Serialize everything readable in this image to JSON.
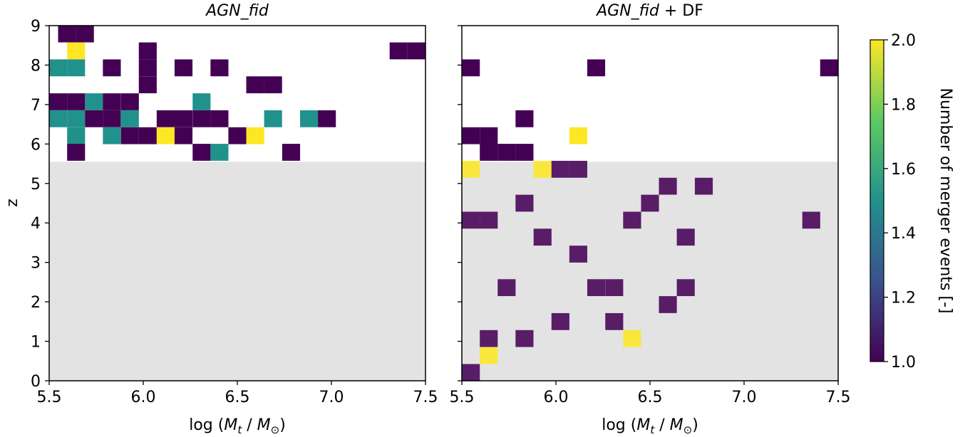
{
  "chart_data": {
    "type": "heatmap",
    "colorbar": {
      "label": "Number of merger events [-]",
      "range": [
        1.0,
        2.0
      ],
      "ticks": [
        "1.0",
        "1.2",
        "1.4",
        "1.6",
        "1.8",
        "2.0"
      ],
      "colormap": "viridis",
      "colors": [
        "#440154",
        "#3b528b",
        "#21918c",
        "#5ec962",
        "#fde725"
      ]
    },
    "shaded_region": {
      "z_range": [
        0,
        5.55
      ],
      "color": "#e3e3e3"
    },
    "cell_size": {
      "dx": 0.0952,
      "dz": 0.4286
    },
    "panels": [
      {
        "title_italic": "AGN_fid",
        "title_rest": "",
        "xlabel_prefix": "log (",
        "xlabel_M": "M",
        "xlabel_t": "t",
        "xlabel_mid": " / ",
        "xlabel_odot": "⊙",
        "xlabel_suffix": ")",
        "ylabel": "z",
        "xlim": [
          5.5,
          7.5
        ],
        "ylim": [
          0,
          9
        ],
        "xticks": [
          "5.5",
          "6.0",
          "6.5",
          "7.0",
          "7.5"
        ],
        "yticks": [
          "0",
          "1",
          "2",
          "3",
          "4",
          "5",
          "6",
          "7",
          "8",
          "9"
        ],
        "cells": [
          {
            "x": 5.595,
            "z": 8.79,
            "v": 1
          },
          {
            "x": 5.69,
            "z": 8.79,
            "v": 1
          },
          {
            "x": 5.643,
            "z": 8.36,
            "v": 2
          },
          {
            "x": 6.024,
            "z": 8.36,
            "v": 1
          },
          {
            "x": 7.357,
            "z": 8.36,
            "v": 1
          },
          {
            "x": 7.452,
            "z": 8.36,
            "v": 1
          },
          {
            "x": 5.548,
            "z": 7.93,
            "v": 1.5
          },
          {
            "x": 5.643,
            "z": 7.93,
            "v": 1.5
          },
          {
            "x": 5.833,
            "z": 7.93,
            "v": 1
          },
          {
            "x": 6.024,
            "z": 7.93,
            "v": 1
          },
          {
            "x": 6.214,
            "z": 7.93,
            "v": 1
          },
          {
            "x": 6.405,
            "z": 7.93,
            "v": 1
          },
          {
            "x": 6.024,
            "z": 7.5,
            "v": 1
          },
          {
            "x": 6.595,
            "z": 7.5,
            "v": 1
          },
          {
            "x": 6.69,
            "z": 7.5,
            "v": 1
          },
          {
            "x": 5.548,
            "z": 7.07,
            "v": 1
          },
          {
            "x": 5.643,
            "z": 7.07,
            "v": 1
          },
          {
            "x": 5.738,
            "z": 7.07,
            "v": 1.5
          },
          {
            "x": 5.833,
            "z": 7.07,
            "v": 1
          },
          {
            "x": 5.929,
            "z": 7.07,
            "v": 1
          },
          {
            "x": 6.31,
            "z": 7.07,
            "v": 1.5
          },
          {
            "x": 5.548,
            "z": 6.64,
            "v": 1.5
          },
          {
            "x": 5.643,
            "z": 6.64,
            "v": 1.5
          },
          {
            "x": 5.738,
            "z": 6.64,
            "v": 1
          },
          {
            "x": 5.833,
            "z": 6.64,
            "v": 1
          },
          {
            "x": 5.929,
            "z": 6.64,
            "v": 1.5
          },
          {
            "x": 6.119,
            "z": 6.64,
            "v": 1
          },
          {
            "x": 6.214,
            "z": 6.64,
            "v": 1
          },
          {
            "x": 6.31,
            "z": 6.64,
            "v": 1
          },
          {
            "x": 6.405,
            "z": 6.64,
            "v": 1
          },
          {
            "x": 6.69,
            "z": 6.64,
            "v": 1.5
          },
          {
            "x": 6.881,
            "z": 6.64,
            "v": 1.5
          },
          {
            "x": 6.976,
            "z": 6.64,
            "v": 1
          },
          {
            "x": 5.643,
            "z": 6.21,
            "v": 1.5
          },
          {
            "x": 5.833,
            "z": 6.21,
            "v": 1.5
          },
          {
            "x": 5.929,
            "z": 6.21,
            "v": 1
          },
          {
            "x": 6.024,
            "z": 6.21,
            "v": 1
          },
          {
            "x": 6.119,
            "z": 6.21,
            "v": 2
          },
          {
            "x": 6.214,
            "z": 6.21,
            "v": 1
          },
          {
            "x": 6.5,
            "z": 6.21,
            "v": 1
          },
          {
            "x": 6.595,
            "z": 6.21,
            "v": 2
          },
          {
            "x": 5.643,
            "z": 5.79,
            "v": 1
          },
          {
            "x": 6.31,
            "z": 5.79,
            "v": 1
          },
          {
            "x": 6.405,
            "z": 5.79,
            "v": 1.5
          },
          {
            "x": 6.786,
            "z": 5.79,
            "v": 1
          }
        ]
      },
      {
        "title_italic": "AGN_fid",
        "title_rest": " + DF",
        "xlabel_prefix": "log (",
        "xlabel_M": "M",
        "xlabel_t": "t",
        "xlabel_mid": " / ",
        "xlabel_odot": "⊙",
        "xlabel_suffix": ")",
        "ylabel": "",
        "xlim": [
          5.5,
          7.5
        ],
        "ylim": [
          0,
          9
        ],
        "xticks": [
          "5.5",
          "6.0",
          "6.5",
          "7.0",
          "7.5"
        ],
        "yticks": [],
        "cells": [
          {
            "x": 5.548,
            "z": 7.93,
            "v": 1
          },
          {
            "x": 6.214,
            "z": 7.93,
            "v": 1
          },
          {
            "x": 7.452,
            "z": 7.93,
            "v": 1
          },
          {
            "x": 5.833,
            "z": 6.64,
            "v": 1
          },
          {
            "x": 5.548,
            "z": 6.21,
            "v": 1
          },
          {
            "x": 5.643,
            "z": 6.21,
            "v": 1
          },
          {
            "x": 6.119,
            "z": 6.21,
            "v": 2
          },
          {
            "x": 5.643,
            "z": 5.79,
            "v": 1
          },
          {
            "x": 5.738,
            "z": 5.79,
            "v": 1
          },
          {
            "x": 5.833,
            "z": 5.79,
            "v": 1
          },
          {
            "x": 5.548,
            "z": 5.36,
            "v": 2
          },
          {
            "x": 5.929,
            "z": 5.36,
            "v": 2
          },
          {
            "x": 6.024,
            "z": 5.36,
            "v": 1
          },
          {
            "x": 6.119,
            "z": 5.36,
            "v": 1
          },
          {
            "x": 6.595,
            "z": 4.93,
            "v": 1
          },
          {
            "x": 6.786,
            "z": 4.93,
            "v": 1
          },
          {
            "x": 5.833,
            "z": 4.5,
            "v": 1
          },
          {
            "x": 6.5,
            "z": 4.5,
            "v": 1
          },
          {
            "x": 5.548,
            "z": 4.07,
            "v": 1
          },
          {
            "x": 5.643,
            "z": 4.07,
            "v": 1
          },
          {
            "x": 6.405,
            "z": 4.07,
            "v": 1
          },
          {
            "x": 7.357,
            "z": 4.07,
            "v": 1
          },
          {
            "x": 5.929,
            "z": 3.64,
            "v": 1
          },
          {
            "x": 6.69,
            "z": 3.64,
            "v": 1
          },
          {
            "x": 6.119,
            "z": 3.21,
            "v": 1
          },
          {
            "x": 5.738,
            "z": 2.36,
            "v": 1
          },
          {
            "x": 6.214,
            "z": 2.36,
            "v": 1
          },
          {
            "x": 6.31,
            "z": 2.36,
            "v": 1
          },
          {
            "x": 6.69,
            "z": 2.36,
            "v": 1
          },
          {
            "x": 6.595,
            "z": 1.93,
            "v": 1
          },
          {
            "x": 6.024,
            "z": 1.5,
            "v": 1
          },
          {
            "x": 6.31,
            "z": 1.5,
            "v": 1
          },
          {
            "x": 5.643,
            "z": 1.07,
            "v": 1
          },
          {
            "x": 5.833,
            "z": 1.07,
            "v": 1
          },
          {
            "x": 6.405,
            "z": 1.07,
            "v": 2
          },
          {
            "x": 5.643,
            "z": 0.64,
            "v": 2
          },
          {
            "x": 5.548,
            "z": 0.21,
            "v": 1
          }
        ]
      }
    ]
  }
}
